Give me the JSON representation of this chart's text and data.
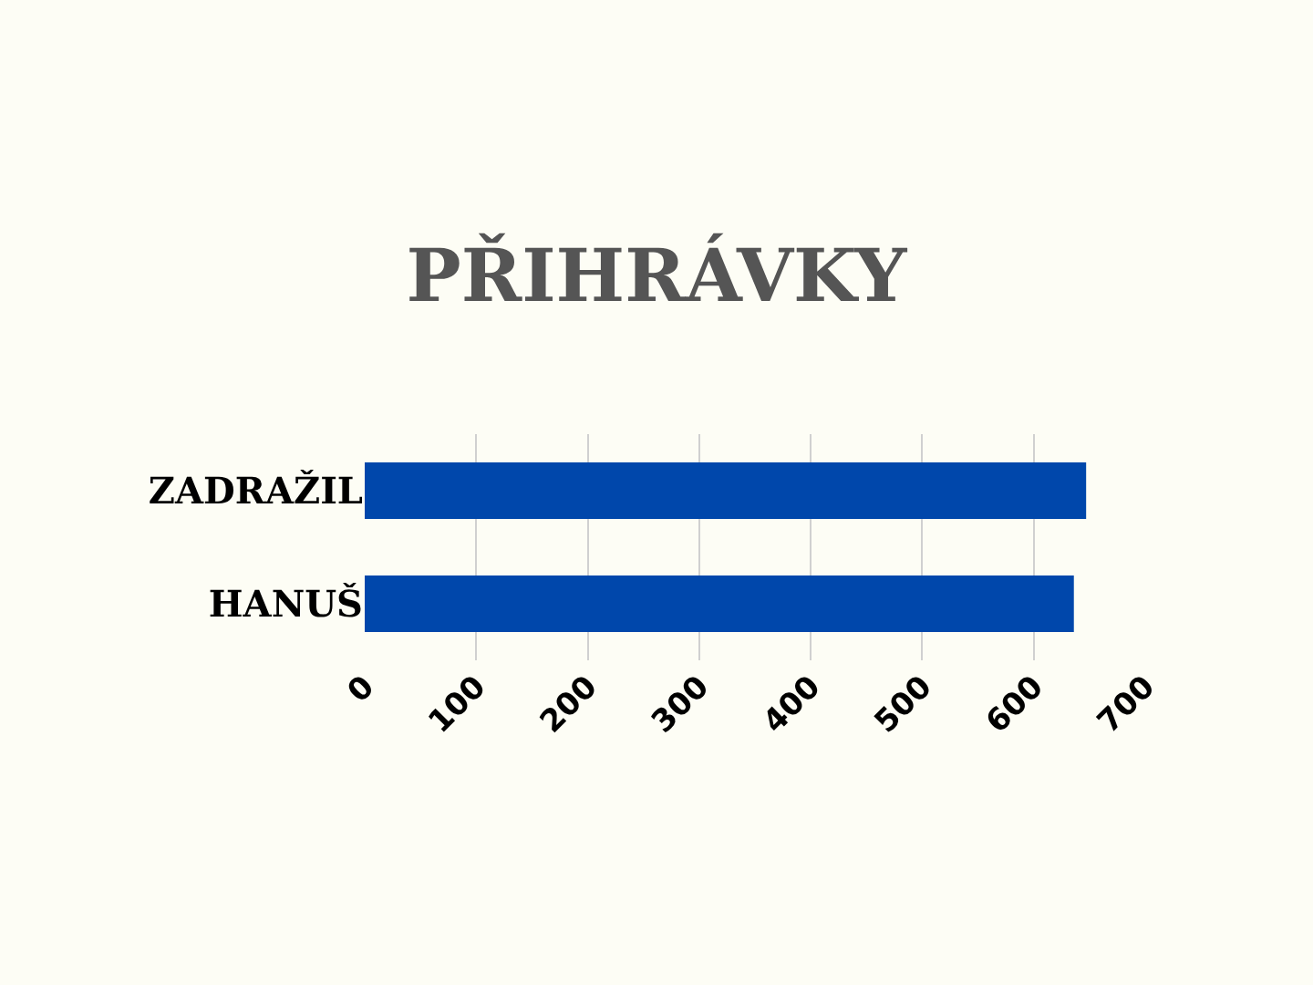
{
  "chart_data": {
    "type": "bar",
    "orientation": "horizontal",
    "title": "PŘIHRÁVKY",
    "categories": [
      "ZADRAŽIL",
      "HANUŠ"
    ],
    "values": [
      647,
      636
    ],
    "color": "#0047ab",
    "xlim": [
      0,
      700
    ],
    "xticks": [
      0,
      100,
      200,
      300,
      400,
      500,
      600,
      700
    ],
    "grid": "x"
  }
}
